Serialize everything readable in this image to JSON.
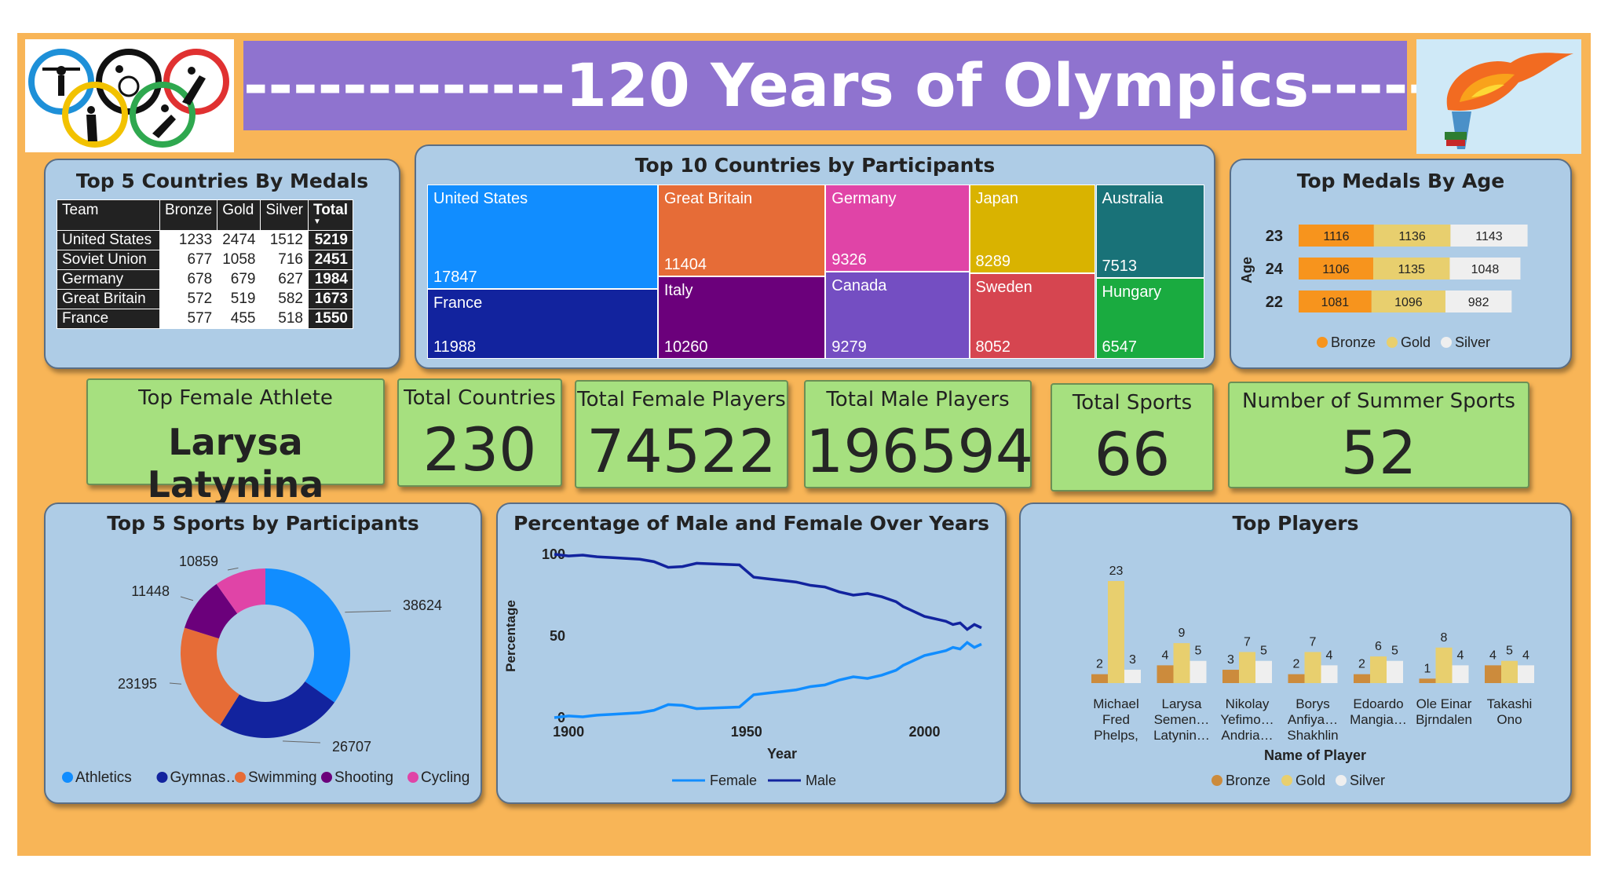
{
  "header": {
    "title": "-------------120 Years of Olympics-----------"
  },
  "medals_table": {
    "title": "Top 5 Countries By Medals",
    "columns": [
      "Team",
      "Bronze",
      "Gold",
      "Silver",
      "Total"
    ],
    "rows": [
      {
        "team": "United States",
        "bronze": "1233",
        "gold": "2474",
        "silver": "1512",
        "total": "5219"
      },
      {
        "team": "Soviet Union",
        "bronze": "677",
        "gold": "1058",
        "silver": "716",
        "total": "2451"
      },
      {
        "team": "Germany",
        "bronze": "678",
        "gold": "679",
        "silver": "627",
        "total": "1984"
      },
      {
        "team": "Great Britain",
        "bronze": "572",
        "gold": "519",
        "silver": "582",
        "total": "1673"
      },
      {
        "team": "France",
        "bronze": "577",
        "gold": "455",
        "silver": "518",
        "total": "1550"
      }
    ]
  },
  "treemap": {
    "title": "Top 10 Countries by Participants"
  },
  "age": {
    "title": "Top Medals By Age",
    "axis_label": "Age"
  },
  "kpis": {
    "female_athlete_label": "Top Female Athlete",
    "female_athlete_value": "Larysa Latynina",
    "countries_label": "Total Countries",
    "countries_value": "230",
    "female_label": "Total Female Players",
    "female_value": "74522",
    "male_label": "Total Male Players",
    "male_value": "196594",
    "sports_label": "Total Sports",
    "sports_value": "66",
    "summer_label": "Number of Summer Sports",
    "summer_value": "52"
  },
  "donut": {
    "title": "Top 5 Sports by Participants"
  },
  "line": {
    "title": "Percentage of Male and Female Over Years"
  },
  "players": {
    "title": "Top Players"
  },
  "colors": {
    "background": "#F8B557",
    "banner": "#8F73CF",
    "panel": "#AECCE6",
    "kpi": "#A6E07F",
    "bronze_age": "#F7941D",
    "gold": "#E8CF6E",
    "silver": "#EFEFEF",
    "bronze_players": "#CC8B3C"
  },
  "chart_data": [
    {
      "type": "table",
      "title": "Top 5 Countries By Medals",
      "columns": [
        "Team",
        "Bronze",
        "Gold",
        "Silver",
        "Total"
      ],
      "rows": [
        [
          "United States",
          1233,
          2474,
          1512,
          5219
        ],
        [
          "Soviet Union",
          677,
          1058,
          716,
          2451
        ],
        [
          "Germany",
          678,
          679,
          627,
          1984
        ],
        [
          "Great Britain",
          572,
          519,
          582,
          1673
        ],
        [
          "France",
          577,
          455,
          518,
          1550
        ]
      ]
    },
    {
      "type": "treemap",
      "title": "Top 10 Countries by Participants",
      "categories": [
        "United States",
        "France",
        "Great Britain",
        "Italy",
        "Germany",
        "Canada",
        "Japan",
        "Sweden",
        "Australia",
        "Hungary"
      ],
      "values": [
        17847,
        11988,
        11404,
        10260,
        9326,
        9279,
        8289,
        8052,
        7513,
        6547
      ],
      "colors": [
        "#118DFF",
        "#12239E",
        "#E66C37",
        "#6B007B",
        "#E044A7",
        "#744EC2",
        "#D9B300",
        "#D64550",
        "#197278",
        "#1AAB40"
      ]
    },
    {
      "type": "bar",
      "title": "Top Medals By Age",
      "ylabel": "Age",
      "orientation": "horizontal-stacked",
      "categories": [
        "23",
        "24",
        "22"
      ],
      "series": [
        {
          "name": "Bronze",
          "values": [
            1116,
            1106,
            1081
          ]
        },
        {
          "name": "Gold",
          "values": [
            1136,
            1135,
            1096
          ]
        },
        {
          "name": "Silver",
          "values": [
            1143,
            1048,
            982
          ]
        }
      ],
      "legend": "bottom"
    },
    {
      "type": "pie",
      "title": "Top 5 Sports by Participants",
      "donut": true,
      "categories": [
        "Athletics",
        "Gymnas…",
        "Swimming",
        "Shooting",
        "Cycling"
      ],
      "values": [
        38624,
        26707,
        23195,
        11448,
        10859
      ],
      "colors": [
        "#118DFF",
        "#12239E",
        "#E66C37",
        "#6B007B",
        "#E044A7"
      ],
      "legend": "bottom"
    },
    {
      "type": "line",
      "title": "Percentage of Male and Female Over Years",
      "xlabel": "Year",
      "ylabel": "Percentage",
      "xticks": [
        "1900",
        "1950",
        "2000"
      ],
      "yticks": [
        "0",
        "50",
        "100"
      ],
      "xlim": [
        1896,
        2016
      ],
      "ylim": [
        0,
        100
      ],
      "x": [
        1896,
        1900,
        1904,
        1906,
        1908,
        1912,
        1920,
        1924,
        1928,
        1932,
        1936,
        1948,
        1952,
        1956,
        1960,
        1964,
        1968,
        1972,
        1976,
        1980,
        1984,
        1988,
        1992,
        1994,
        1996,
        1998,
        2000,
        2002,
        2004,
        2006,
        2008,
        2010,
        2012,
        2014,
        2016
      ],
      "series": [
        {
          "name": "Female",
          "color": "#118DFF",
          "values": [
            0,
            1,
            0.5,
            1,
            1.5,
            2,
            3,
            4.5,
            8,
            7.5,
            5.5,
            6.5,
            14,
            15,
            16,
            17,
            19,
            20,
            23,
            25,
            24,
            26,
            29,
            32,
            34,
            36,
            38,
            39,
            40,
            41,
            43,
            42,
            46,
            43,
            45
          ]
        },
        {
          "name": "Male",
          "color": "#12239E",
          "values": [
            100,
            99,
            99.5,
            99,
            98.5,
            98,
            97,
            95.5,
            92,
            92.5,
            94.5,
            93.5,
            86,
            85,
            84,
            83,
            81,
            80,
            77,
            75,
            76,
            74,
            71,
            68,
            66,
            64,
            62,
            61,
            60,
            59,
            57,
            58,
            54,
            57,
            55
          ]
        }
      ],
      "legend": "bottom"
    },
    {
      "type": "bar",
      "title": "Top Players",
      "xlabel": "Name of Player",
      "categories": [
        "Michael Fred Phelps, II",
        "Larysa Semen… Latynin…",
        "Nikolay Yefimo… Andria…",
        "Borys Anfiya… Shakhlin",
        "Edoardo Mangia…",
        "Ole Einar Bjrndalen",
        "Takashi Ono"
      ],
      "series": [
        {
          "name": "Bronze",
          "color": "#CC8B3C",
          "values": [
            2,
            4,
            3,
            2,
            2,
            1,
            4
          ]
        },
        {
          "name": "Gold",
          "color": "#E8CF6E",
          "values": [
            23,
            9,
            7,
            7,
            6,
            8,
            5
          ]
        },
        {
          "name": "Silver",
          "color": "#EFEFEF",
          "values": [
            3,
            5,
            5,
            4,
            5,
            4,
            4
          ]
        }
      ],
      "legend": "bottom"
    }
  ]
}
